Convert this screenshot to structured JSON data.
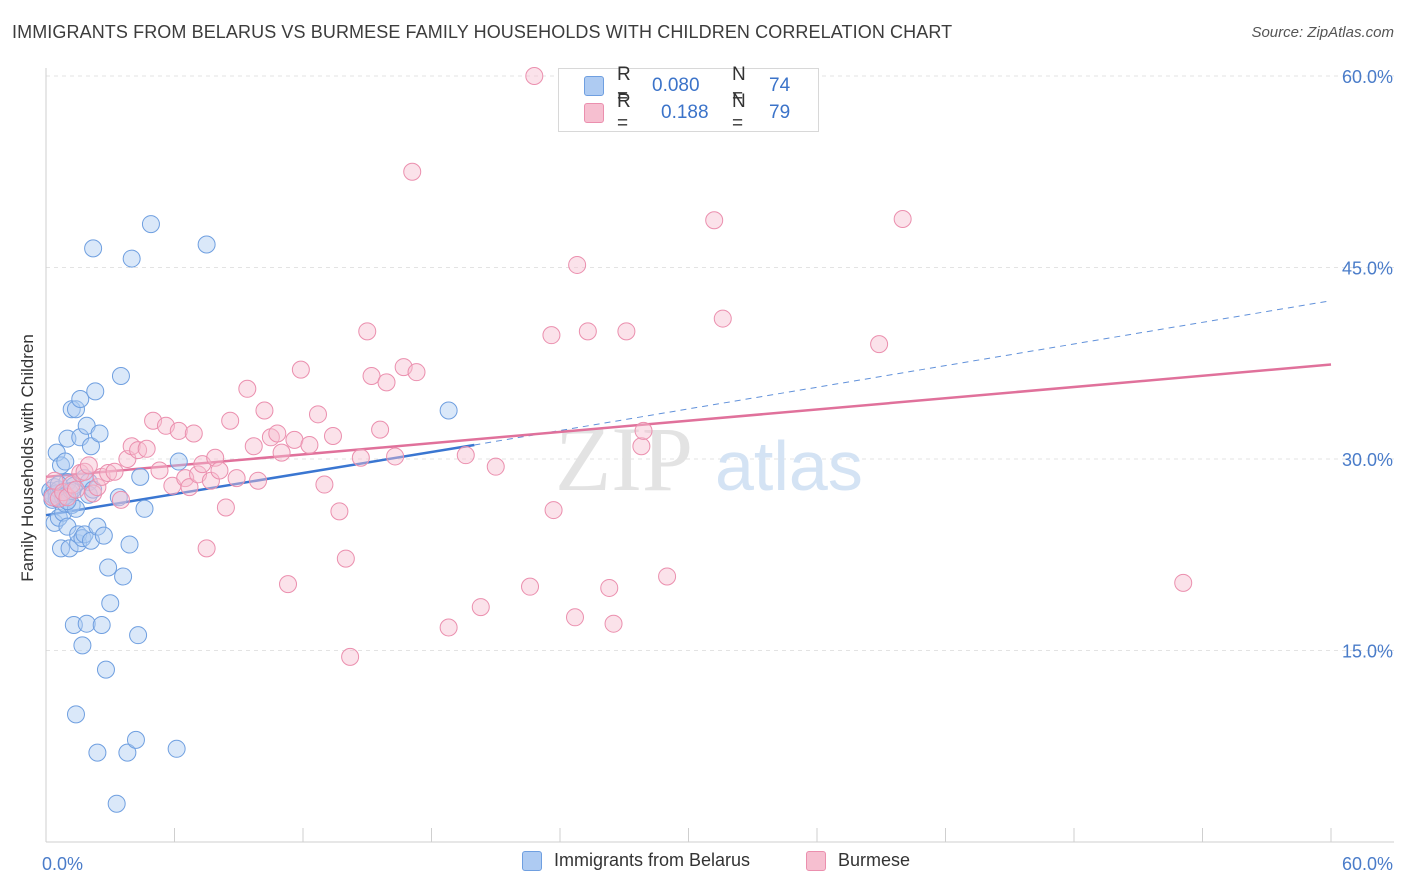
{
  "header": {
    "title": "IMMIGRANTS FROM BELARUS VS BURMESE FAMILY HOUSEHOLDS WITH CHILDREN CORRELATION CHART",
    "source": "Source: ZipAtlas.com"
  },
  "watermark": {
    "zip": "ZIP",
    "atlas": "atlas"
  },
  "stats": {
    "belarus": {
      "r_label": "R =",
      "r_value": "0.080",
      "n_label": "N =",
      "n_value": "74"
    },
    "burmese": {
      "r_label": "R =",
      "r_value": "0.188",
      "n_label": "N =",
      "n_value": "79"
    }
  },
  "colors": {
    "belarus_fill": "#aecbf2",
    "belarus_stroke": "#6f9fe0",
    "belarus_line": "#3a76d1",
    "burmese_fill": "#f6bfd0",
    "burmese_stroke": "#eb8fae",
    "burmese_line": "#e0719b",
    "tick_label": "#4a7cc9",
    "grid": "#e3e3e3"
  },
  "chart_data": {
    "type": "scatter",
    "title": "IMMIGRANTS FROM BELARUS VS BURMESE FAMILY HOUSEHOLDS WITH CHILDREN CORRELATION CHART",
    "xlabel": "",
    "ylabel": "Family Households with Children",
    "xlim": [
      0,
      60
    ],
    "ylim": [
      0,
      60
    ],
    "x_tick_labels": [
      "0.0%",
      "60.0%"
    ],
    "y_ticks": [
      15,
      30,
      45,
      60
    ],
    "y_tick_labels": [
      "15.0%",
      "30.0%",
      "45.0%",
      "60.0%"
    ],
    "grid": true,
    "legend": [
      "Immigrants from Belarus",
      "Burmese"
    ],
    "series": [
      {
        "name": "Immigrants from Belarus",
        "R": 0.08,
        "N": 74,
        "trend": {
          "x": [
            0,
            20
          ],
          "y": [
            25.6,
            31.1
          ],
          "extended_to": [
            60,
            42.4
          ]
        },
        "points": [
          [
            0.2,
            27.5
          ],
          [
            0.3,
            26.8
          ],
          [
            0.3,
            27.2
          ],
          [
            0.4,
            25.0
          ],
          [
            0.4,
            27.8
          ],
          [
            0.5,
            27.3
          ],
          [
            0.5,
            30.5
          ],
          [
            0.5,
            26.9
          ],
          [
            0.6,
            25.4
          ],
          [
            0.6,
            27.6
          ],
          [
            0.7,
            29.5
          ],
          [
            0.7,
            23.0
          ],
          [
            0.8,
            27.0
          ],
          [
            0.8,
            25.8
          ],
          [
            0.9,
            26.5
          ],
          [
            0.9,
            29.8
          ],
          [
            1.0,
            31.6
          ],
          [
            1.0,
            28.2
          ],
          [
            1.0,
            24.7
          ],
          [
            1.1,
            27.4
          ],
          [
            1.1,
            23.0
          ],
          [
            1.2,
            33.9
          ],
          [
            1.2,
            26.4
          ],
          [
            1.3,
            27.9
          ],
          [
            1.3,
            17.0
          ],
          [
            1.4,
            33.9
          ],
          [
            1.4,
            26.1
          ],
          [
            1.4,
            10.0
          ],
          [
            1.5,
            23.4
          ],
          [
            1.5,
            24.1
          ],
          [
            1.6,
            34.7
          ],
          [
            1.6,
            31.7
          ],
          [
            1.7,
            15.4
          ],
          [
            1.7,
            23.8
          ],
          [
            1.8,
            28.5
          ],
          [
            1.8,
            24.1
          ],
          [
            1.9,
            17.1
          ],
          [
            1.9,
            32.6
          ],
          [
            2.0,
            28.2
          ],
          [
            2.0,
            27.2
          ],
          [
            2.1,
            31.0
          ],
          [
            2.1,
            23.6
          ],
          [
            2.2,
            46.5
          ],
          [
            2.2,
            27.6
          ],
          [
            2.3,
            35.3
          ],
          [
            2.4,
            24.7
          ],
          [
            2.4,
            7.0
          ],
          [
            2.5,
            32.0
          ],
          [
            2.6,
            17.0
          ],
          [
            2.7,
            24.0
          ],
          [
            2.8,
            13.5
          ],
          [
            2.9,
            21.5
          ],
          [
            3.0,
            18.7
          ],
          [
            3.3,
            3.0
          ],
          [
            3.4,
            27.0
          ],
          [
            3.5,
            36.5
          ],
          [
            3.6,
            20.8
          ],
          [
            3.8,
            7.0
          ],
          [
            3.9,
            23.3
          ],
          [
            4.0,
            45.7
          ],
          [
            4.2,
            8.0
          ],
          [
            4.3,
            16.2
          ],
          [
            4.4,
            28.6
          ],
          [
            4.6,
            26.1
          ],
          [
            4.9,
            48.4
          ],
          [
            6.2,
            29.8
          ],
          [
            6.1,
            7.3
          ],
          [
            7.5,
            46.8
          ],
          [
            18.8,
            33.8
          ],
          [
            0.3,
            27.0
          ],
          [
            0.6,
            28.0
          ],
          [
            0.9,
            27.1
          ],
          [
            1.0,
            26.7
          ],
          [
            1.2,
            27.5
          ]
        ]
      },
      {
        "name": "Burmese",
        "R": 0.188,
        "N": 79,
        "trend": {
          "x": [
            0,
            60
          ],
          "y": [
            28.6,
            37.4
          ]
        },
        "points": [
          [
            0.3,
            27.0
          ],
          [
            0.4,
            28.3
          ],
          [
            0.6,
            26.9
          ],
          [
            0.8,
            27.4
          ],
          [
            1.0,
            27.0
          ],
          [
            1.2,
            28.0
          ],
          [
            1.4,
            27.6
          ],
          [
            1.6,
            28.9
          ],
          [
            1.8,
            29.0
          ],
          [
            2.0,
            29.5
          ],
          [
            2.2,
            27.3
          ],
          [
            2.4,
            27.8
          ],
          [
            2.6,
            28.6
          ],
          [
            2.9,
            28.9
          ],
          [
            3.2,
            29.0
          ],
          [
            3.5,
            26.8
          ],
          [
            3.8,
            30.0
          ],
          [
            4.0,
            31.0
          ],
          [
            4.3,
            30.7
          ],
          [
            4.7,
            30.8
          ],
          [
            5.0,
            33.0
          ],
          [
            5.3,
            29.1
          ],
          [
            5.6,
            32.6
          ],
          [
            5.9,
            27.9
          ],
          [
            6.2,
            32.2
          ],
          [
            6.5,
            28.5
          ],
          [
            6.7,
            27.8
          ],
          [
            6.9,
            32.0
          ],
          [
            7.1,
            28.8
          ],
          [
            7.3,
            29.6
          ],
          [
            7.5,
            23.0
          ],
          [
            7.7,
            28.3
          ],
          [
            7.9,
            30.1
          ],
          [
            8.1,
            29.1
          ],
          [
            8.4,
            26.2
          ],
          [
            8.6,
            33.0
          ],
          [
            8.9,
            28.5
          ],
          [
            9.4,
            35.5
          ],
          [
            9.7,
            31.0
          ],
          [
            9.9,
            28.3
          ],
          [
            10.2,
            33.8
          ],
          [
            10.5,
            31.7
          ],
          [
            10.8,
            32.0
          ],
          [
            11.0,
            30.5
          ],
          [
            11.3,
            20.2
          ],
          [
            11.6,
            31.5
          ],
          [
            11.9,
            37.0
          ],
          [
            12.3,
            31.1
          ],
          [
            12.7,
            33.5
          ],
          [
            13.0,
            28.0
          ],
          [
            13.4,
            31.8
          ],
          [
            13.7,
            25.9
          ],
          [
            14.0,
            22.2
          ],
          [
            14.2,
            14.5
          ],
          [
            14.7,
            30.1
          ],
          [
            15.0,
            40.0
          ],
          [
            15.2,
            36.5
          ],
          [
            15.6,
            32.3
          ],
          [
            15.9,
            36.0
          ],
          [
            16.3,
            30.2
          ],
          [
            16.7,
            37.2
          ],
          [
            17.1,
            52.5
          ],
          [
            17.3,
            36.8
          ],
          [
            18.8,
            16.8
          ],
          [
            19.6,
            30.3
          ],
          [
            20.3,
            18.4
          ],
          [
            21.0,
            29.4
          ],
          [
            22.6,
            20.0
          ],
          [
            22.8,
            60.0
          ],
          [
            23.6,
            39.7
          ],
          [
            23.7,
            26.0
          ],
          [
            24.7,
            17.6
          ],
          [
            24.8,
            45.2
          ],
          [
            25.3,
            40.0
          ],
          [
            26.3,
            19.9
          ],
          [
            26.5,
            17.1
          ],
          [
            27.1,
            40.0
          ],
          [
            27.8,
            31.0
          ],
          [
            27.9,
            32.2
          ]
        ],
        "extra_points": [
          [
            29.0,
            20.8
          ],
          [
            31.2,
            48.7
          ],
          [
            31.6,
            41.0
          ],
          [
            38.9,
            39.0
          ],
          [
            40.0,
            48.8
          ],
          [
            53.1,
            20.3
          ]
        ]
      }
    ]
  }
}
